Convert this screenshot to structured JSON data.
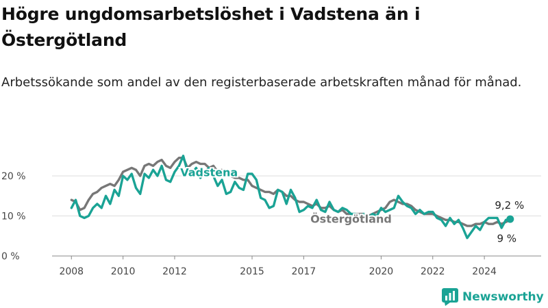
{
  "header": {
    "title": "Högre ungdomsarbetslöshet i Vadstena än i Östergötland",
    "subtitle": "Arbetssökande som andel av den registerbaserade arbetskraften månad för månad."
  },
  "brand": {
    "name": "Newsworthy",
    "icon": "newsworthy-logo-icon",
    "color": "#1aa395"
  },
  "chart_data": {
    "type": "line",
    "title": "",
    "xlabel": "",
    "ylabel": "",
    "x_ticks": [
      "2008",
      "2010",
      "2012",
      "2015",
      "2017",
      "2020",
      "2022",
      "2024"
    ],
    "y_ticks": [
      "0 %",
      "10 %",
      "20 %"
    ],
    "ylim": [
      0,
      27
    ],
    "grid": "horizontal",
    "legend": "inline labels",
    "series": [
      {
        "name": "Vadstena",
        "color": "#1aa395",
        "end_label": "9,2 %",
        "label_at": "2013-05",
        "points": [
          [
            "2008-01",
            12
          ],
          [
            "2008-03",
            14
          ],
          [
            "2008-05",
            10
          ],
          [
            "2008-07",
            9.5
          ],
          [
            "2008-09",
            10
          ],
          [
            "2008-11",
            12
          ],
          [
            "2009-01",
            13
          ],
          [
            "2009-03",
            12
          ],
          [
            "2009-05",
            15
          ],
          [
            "2009-07",
            13
          ],
          [
            "2009-09",
            16.5
          ],
          [
            "2009-11",
            15
          ],
          [
            "2010-01",
            20
          ],
          [
            "2010-03",
            19
          ],
          [
            "2010-05",
            20.5
          ],
          [
            "2010-07",
            17
          ],
          [
            "2010-09",
            15.5
          ],
          [
            "2010-11",
            20.5
          ],
          [
            "2011-01",
            19.5
          ],
          [
            "2011-03",
            21.5
          ],
          [
            "2011-05",
            20
          ],
          [
            "2011-07",
            22.5
          ],
          [
            "2011-09",
            19
          ],
          [
            "2011-11",
            18.5
          ],
          [
            "2012-01",
            21
          ],
          [
            "2012-03",
            22.5
          ],
          [
            "2012-05",
            25
          ],
          [
            "2012-07",
            21
          ],
          [
            "2012-09",
            20.5
          ],
          [
            "2012-11",
            22
          ],
          [
            "2013-01",
            19.5
          ],
          [
            "2013-03",
            21
          ],
          [
            "2013-05",
            22
          ],
          [
            "2013-07",
            20
          ],
          [
            "2013-09",
            17.5
          ],
          [
            "2013-11",
            19
          ],
          [
            "2014-01",
            15.5
          ],
          [
            "2014-03",
            16
          ],
          [
            "2014-05",
            18.5
          ],
          [
            "2014-07",
            17
          ],
          [
            "2014-09",
            16.5
          ],
          [
            "2014-11",
            20.5
          ],
          [
            "2015-01",
            20.5
          ],
          [
            "2015-03",
            19
          ],
          [
            "2015-05",
            14.5
          ],
          [
            "2015-07",
            14
          ],
          [
            "2015-09",
            12
          ],
          [
            "2015-11",
            12.5
          ],
          [
            "2016-01",
            16.5
          ],
          [
            "2016-03",
            16
          ],
          [
            "2016-05",
            13
          ],
          [
            "2016-07",
            16.5
          ],
          [
            "2016-09",
            14.5
          ],
          [
            "2016-11",
            11
          ],
          [
            "2017-01",
            11.5
          ],
          [
            "2017-03",
            12.5
          ],
          [
            "2017-05",
            12
          ],
          [
            "2017-07",
            14
          ],
          [
            "2017-09",
            11.5
          ],
          [
            "2017-11",
            11
          ],
          [
            "2018-01",
            13.5
          ],
          [
            "2018-03",
            11.5
          ],
          [
            "2018-05",
            11
          ],
          [
            "2018-07",
            12
          ],
          [
            "2018-09",
            11.5
          ],
          [
            "2018-11",
            10.5
          ],
          [
            "2019-01",
            10.5
          ],
          [
            "2019-03",
            10
          ],
          [
            "2019-05",
            10.5
          ],
          [
            "2019-07",
            9.5
          ],
          [
            "2019-09",
            10.5
          ],
          [
            "2019-11",
            10
          ],
          [
            "2020-01",
            12
          ],
          [
            "2020-03",
            11
          ],
          [
            "2020-05",
            11.5
          ],
          [
            "2020-07",
            12
          ],
          [
            "2020-09",
            15
          ],
          [
            "2020-11",
            13.5
          ],
          [
            "2021-01",
            12.5
          ],
          [
            "2021-03",
            12
          ],
          [
            "2021-05",
            10.5
          ],
          [
            "2021-07",
            11.5
          ],
          [
            "2021-09",
            10.5
          ],
          [
            "2021-11",
            11
          ],
          [
            "2022-01",
            11
          ],
          [
            "2022-03",
            9.5
          ],
          [
            "2022-05",
            9
          ],
          [
            "2022-07",
            7.5
          ],
          [
            "2022-09",
            9.5
          ],
          [
            "2022-11",
            8
          ],
          [
            "2023-01",
            9
          ],
          [
            "2023-03",
            7
          ],
          [
            "2023-05",
            4.5
          ],
          [
            "2023-07",
            6
          ],
          [
            "2023-09",
            7.5
          ],
          [
            "2023-11",
            6.5
          ],
          [
            "2024-01",
            8.5
          ],
          [
            "2024-03",
            9.5
          ],
          [
            "2024-05",
            9.5
          ],
          [
            "2024-07",
            9.5
          ],
          [
            "2024-09",
            7
          ],
          [
            "2024-11",
            9
          ],
          [
            "2025-01",
            9.2
          ]
        ]
      },
      {
        "name": "Östergötland",
        "color": "#777777",
        "end_label": "9 %",
        "label_at": "2018-11",
        "points": [
          [
            "2008-01",
            14
          ],
          [
            "2008-03",
            13.5
          ],
          [
            "2008-05",
            11.5
          ],
          [
            "2008-07",
            12
          ],
          [
            "2008-09",
            14
          ],
          [
            "2008-11",
            15.5
          ],
          [
            "2009-01",
            16
          ],
          [
            "2009-03",
            17
          ],
          [
            "2009-05",
            17.5
          ],
          [
            "2009-07",
            18
          ],
          [
            "2009-09",
            17.5
          ],
          [
            "2009-11",
            19
          ],
          [
            "2010-01",
            21
          ],
          [
            "2010-03",
            21.5
          ],
          [
            "2010-05",
            22
          ],
          [
            "2010-07",
            21.5
          ],
          [
            "2010-09",
            20
          ],
          [
            "2010-11",
            22.5
          ],
          [
            "2011-01",
            23
          ],
          [
            "2011-03",
            22.5
          ],
          [
            "2011-05",
            23.5
          ],
          [
            "2011-07",
            24
          ],
          [
            "2011-09",
            22.5
          ],
          [
            "2011-11",
            22
          ],
          [
            "2012-01",
            23.5
          ],
          [
            "2012-03",
            24.5
          ],
          [
            "2012-05",
            24.5
          ],
          [
            "2012-07",
            22
          ],
          [
            "2012-09",
            23
          ],
          [
            "2012-11",
            23.5
          ],
          [
            "2013-01",
            23
          ],
          [
            "2013-03",
            23
          ],
          [
            "2013-05",
            22
          ],
          [
            "2013-07",
            22.5
          ],
          [
            "2013-09",
            21
          ],
          [
            "2013-11",
            21.5
          ],
          [
            "2014-01",
            21
          ],
          [
            "2014-03",
            20
          ],
          [
            "2014-05",
            19.5
          ],
          [
            "2014-07",
            19.5
          ],
          [
            "2014-09",
            19
          ],
          [
            "2014-11",
            19
          ],
          [
            "2015-01",
            17.5
          ],
          [
            "2015-03",
            17
          ],
          [
            "2015-05",
            16.5
          ],
          [
            "2015-07",
            16
          ],
          [
            "2015-09",
            16
          ],
          [
            "2015-11",
            15.5
          ],
          [
            "2016-01",
            16.5
          ],
          [
            "2016-03",
            16
          ],
          [
            "2016-05",
            15
          ],
          [
            "2016-07",
            15
          ],
          [
            "2016-09",
            14
          ],
          [
            "2016-11",
            13.5
          ],
          [
            "2017-01",
            13.5
          ],
          [
            "2017-03",
            13
          ],
          [
            "2017-05",
            12.5
          ],
          [
            "2017-07",
            13
          ],
          [
            "2017-09",
            12
          ],
          [
            "2017-11",
            12
          ],
          [
            "2018-01",
            12.5
          ],
          [
            "2018-03",
            11.5
          ],
          [
            "2018-05",
            11
          ],
          [
            "2018-07",
            11.5
          ],
          [
            "2018-09",
            10.5
          ],
          [
            "2018-11",
            10.5
          ],
          [
            "2019-01",
            10.5
          ],
          [
            "2019-03",
            10.5
          ],
          [
            "2019-05",
            10.5
          ],
          [
            "2019-07",
            10
          ],
          [
            "2019-09",
            10.5
          ],
          [
            "2019-11",
            11
          ],
          [
            "2020-01",
            11.5
          ],
          [
            "2020-03",
            12
          ],
          [
            "2020-05",
            13.5
          ],
          [
            "2020-07",
            14
          ],
          [
            "2020-09",
            13.5
          ],
          [
            "2020-11",
            13
          ],
          [
            "2021-01",
            13
          ],
          [
            "2021-03",
            12.5
          ],
          [
            "2021-05",
            11.5
          ],
          [
            "2021-07",
            11
          ],
          [
            "2021-09",
            10.5
          ],
          [
            "2021-11",
            10.5
          ],
          [
            "2022-01",
            10.5
          ],
          [
            "2022-03",
            10
          ],
          [
            "2022-05",
            9.5
          ],
          [
            "2022-07",
            9
          ],
          [
            "2022-09",
            9
          ],
          [
            "2022-11",
            8.5
          ],
          [
            "2023-01",
            8.5
          ],
          [
            "2023-03",
            8
          ],
          [
            "2023-05",
            7.5
          ],
          [
            "2023-07",
            7.5
          ],
          [
            "2023-09",
            8
          ],
          [
            "2023-11",
            8
          ],
          [
            "2024-01",
            8.5
          ],
          [
            "2024-03",
            8
          ],
          [
            "2024-05",
            8
          ],
          [
            "2024-07",
            8.5
          ],
          [
            "2024-09",
            8
          ],
          [
            "2024-11",
            8.5
          ],
          [
            "2025-01",
            9
          ]
        ]
      }
    ]
  }
}
